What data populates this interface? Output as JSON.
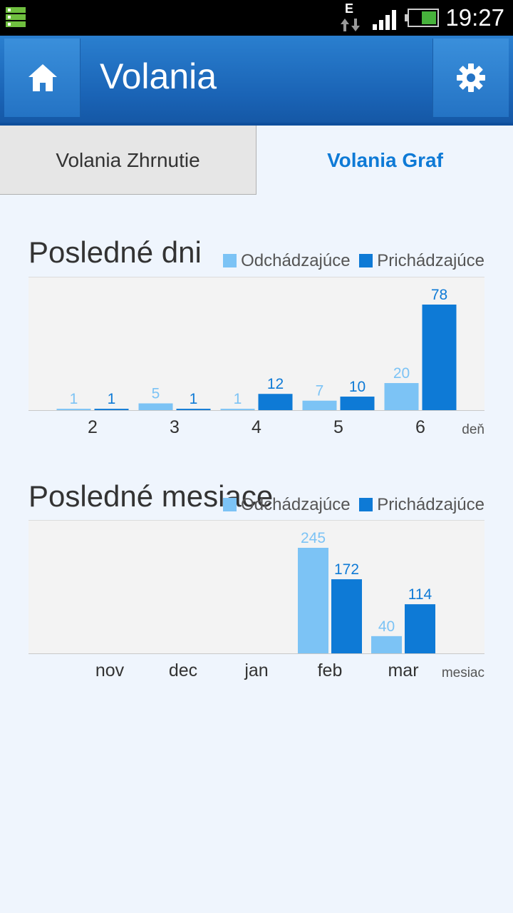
{
  "status_bar": {
    "time": "19:27",
    "network_type": "E",
    "icons": [
      "notification-icon",
      "data-arrows-icon",
      "signal-icon",
      "battery-icon"
    ]
  },
  "action_bar": {
    "title": "Volania",
    "home_icon": "home-icon",
    "settings_icon": "gear-icon"
  },
  "tabs": [
    {
      "label": "Volania Zhrnutie",
      "active": false
    },
    {
      "label": "Volania Graf",
      "active": true
    }
  ],
  "colors": {
    "outgoing": "#7cc3f5",
    "incoming": "#0e7ad6",
    "accent": "#0e7ad6"
  },
  "chart_data": [
    {
      "type": "bar",
      "title": "Posledné dni",
      "xlabel": "deň",
      "categories": [
        "2",
        "3",
        "4",
        "5",
        "6"
      ],
      "series": [
        {
          "name": "Odchádzajúce",
          "values": [
            1,
            5,
            1,
            7,
            20
          ]
        },
        {
          "name": "Prichádzajúce",
          "values": [
            1,
            1,
            12,
            10,
            78
          ]
        }
      ],
      "ylim": [
        0,
        78
      ],
      "legend": "top-right",
      "grid": false
    },
    {
      "type": "bar",
      "title": "Posledné mesiace",
      "xlabel": "mesiac",
      "categories": [
        "nov",
        "dec",
        "jan",
        "feb",
        "mar"
      ],
      "series": [
        {
          "name": "Odchádzajúce",
          "values": [
            null,
            null,
            null,
            245,
            40
          ]
        },
        {
          "name": "Prichádzajúce",
          "values": [
            null,
            null,
            null,
            172,
            114
          ]
        }
      ],
      "ylim": [
        0,
        245
      ],
      "legend": "top-right",
      "grid": false
    }
  ]
}
